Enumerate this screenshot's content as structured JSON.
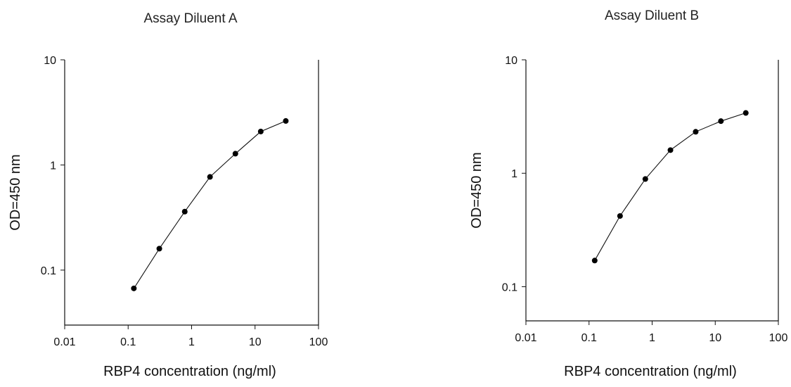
{
  "chart_data": [
    {
      "type": "line",
      "title": "Assay Diluent A",
      "xlabel": "RBP4 concentration (ng/ml)",
      "ylabel": "OD=450 nm",
      "x_scale": "log",
      "y_scale": "log",
      "xlim": [
        0.01,
        100
      ],
      "ylim": [
        0.03,
        10
      ],
      "x_ticks": [
        0.01,
        0.1,
        1,
        10,
        100
      ],
      "x_tick_labels": [
        "0.01",
        "0.1",
        "1",
        "10",
        "100"
      ],
      "y_ticks": [
        0.1,
        1,
        10
      ],
      "y_tick_labels": [
        "0.1",
        "1",
        "10"
      ],
      "grid": false,
      "legend": "none",
      "series": [
        {
          "x": [
            0.123,
            0.31,
            0.78,
            1.95,
            4.9,
            12.3,
            30.5
          ],
          "y": [
            0.067,
            0.16,
            0.36,
            0.77,
            1.28,
            2.08,
            2.62
          ]
        }
      ]
    },
    {
      "type": "line",
      "title": "Assay Diluent B",
      "xlabel": "RBP4 concentration (ng/ml)",
      "ylabel": "OD=450 nm",
      "x_scale": "log",
      "y_scale": "log",
      "xlim": [
        0.01,
        100
      ],
      "ylim": [
        0.05,
        10
      ],
      "x_ticks": [
        0.01,
        0.1,
        1,
        10,
        100
      ],
      "x_tick_labels": [
        "0.01",
        "0.1",
        "1",
        "10",
        "100"
      ],
      "y_ticks": [
        0.1,
        1,
        10
      ],
      "y_tick_labels": [
        "0.1",
        "1",
        "10"
      ],
      "grid": false,
      "legend": "none",
      "series": [
        {
          "x": [
            0.123,
            0.31,
            0.78,
            1.95,
            4.9,
            12.3,
            30.5
          ],
          "y": [
            0.17,
            0.42,
            0.89,
            1.6,
            2.32,
            2.88,
            3.4
          ]
        }
      ]
    }
  ]
}
